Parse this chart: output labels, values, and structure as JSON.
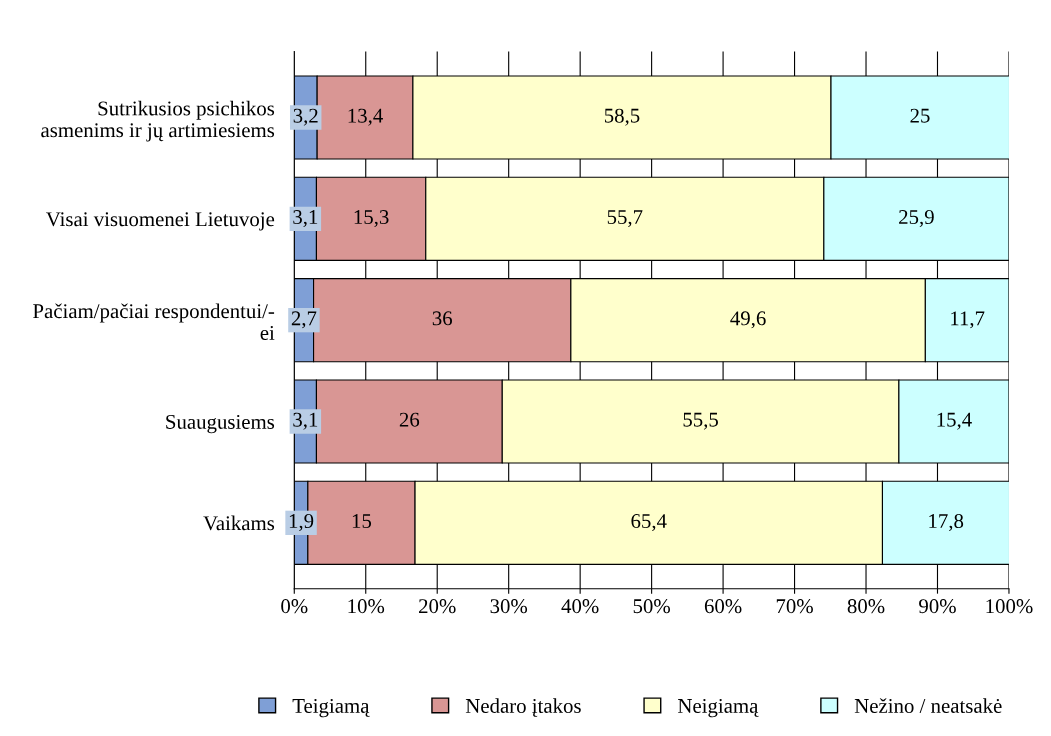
{
  "chart_data": {
    "type": "bar",
    "orientation": "horizontal",
    "stacked": true,
    "categories": [
      "Sutrikusios psichikos\nasmenims ir jų artimiesiems",
      "Visai visuomenei Lietuvoje",
      "Pačiam/pačiai respondentui/-\nei",
      "Suaugusiems",
      "Vaikams"
    ],
    "series": [
      {
        "name": "Teigiamą",
        "color": "#7f9fd6",
        "values": [
          3.2,
          3.1,
          2.7,
          3.1,
          1.9
        ],
        "value_labels": [
          "3,2",
          "3,1",
          "2,7",
          "3,1",
          "1,9"
        ]
      },
      {
        "name": "Nedaro įtakos",
        "color": "#d99694",
        "values": [
          13.4,
          15.3,
          36,
          26,
          15
        ],
        "value_labels": [
          "13,4",
          "15,3",
          "36",
          "26",
          "15"
        ]
      },
      {
        "name": "Neigiamą",
        "color": "#ffffcc",
        "values": [
          58.5,
          55.7,
          49.6,
          55.5,
          65.4
        ],
        "value_labels": [
          "58,5",
          "55,7",
          "49,6",
          "55,5",
          "65,4"
        ]
      },
      {
        "name": "Nežino / neatsakė",
        "color": "#ccffff",
        "values": [
          25,
          25.9,
          11.7,
          15.4,
          17.8
        ],
        "value_labels": [
          "25",
          "25,9",
          "11,7",
          "15,4",
          "17,8"
        ]
      }
    ],
    "xlim": [
      0,
      100
    ],
    "xticks": [
      {
        "value": 0,
        "label": "0%"
      },
      {
        "value": 10,
        "label": "10%"
      },
      {
        "value": 20,
        "label": "20%"
      },
      {
        "value": 30,
        "label": "30%"
      },
      {
        "value": 40,
        "label": "40%"
      },
      {
        "value": 50,
        "label": "50%"
      },
      {
        "value": 60,
        "label": "60%"
      },
      {
        "value": 70,
        "label": "70%"
      },
      {
        "value": 80,
        "label": "80%"
      },
      {
        "value": 90,
        "label": "90%"
      },
      {
        "value": 100,
        "label": "100%"
      }
    ],
    "grid": "x",
    "legend": "bottom"
  }
}
